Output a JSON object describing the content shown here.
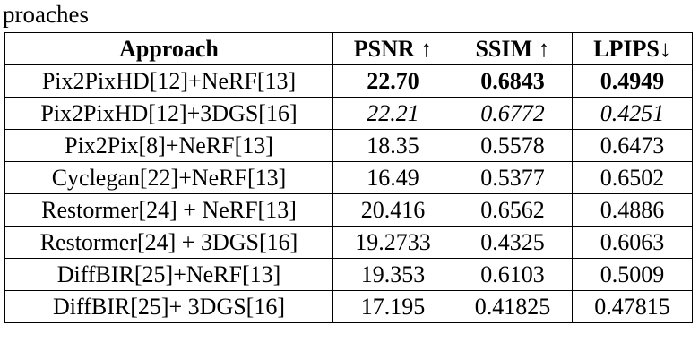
{
  "caption_fragment": "proaches",
  "table": {
    "header": [
      "Approach",
      "PSNR ↑",
      "SSIM ↑",
      "LPIPS↓"
    ],
    "rows": [
      [
        "Pix2PixHD[12]+NeRF[13]",
        "22.70",
        "0.6843",
        "0.4949"
      ],
      [
        "Pix2PixHD[12]+3DGS[16]",
        "22.21",
        "0.6772",
        "0.4251"
      ],
      [
        "Pix2Pix[8]+NeRF[13]",
        "18.35",
        "0.5578",
        "0.6473"
      ],
      [
        "Cyclegan[22]+NeRF[13]",
        "16.49",
        "0.5377",
        "0.6502"
      ],
      [
        "Restormer[24] + NeRF[13]",
        "20.416",
        "0.6562",
        "0.4886"
      ],
      [
        "Restormer[24] + 3DGS[16]",
        "19.2733",
        "0.4325",
        "0.6063"
      ],
      [
        "DiffBIR[25]+NeRF[13]",
        "19.353",
        "0.6103",
        "0.5009"
      ],
      [
        "DiffBIR[25]+ 3DGS[16]",
        "17.195",
        "0.41825",
        "0.47815"
      ]
    ]
  }
}
